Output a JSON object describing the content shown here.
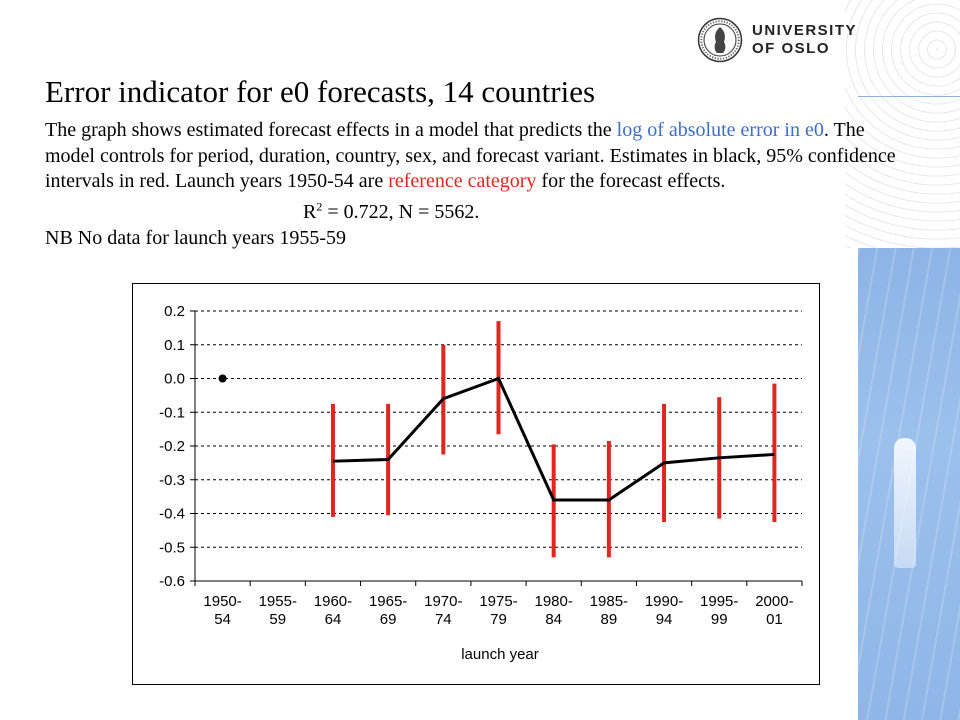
{
  "header": {
    "logo_line1": "UNIVERSITY",
    "logo_line2": "OF OSLO"
  },
  "title": "Error indicator for e0 forecasts, 14 countries",
  "description": {
    "p1a": "The graph shows estimated forecast effects in a model that predicts the ",
    "p1b": "log of absolute error in e0",
    "p1c": ". The model controls for period, duration, country, sex, and forecast variant. Estimates in black, 95% confidence intervals in red. Launch years 1950-54 are ",
    "p1d": "reference category",
    "p1e": " for the forecast effects.",
    "stats_r": "R",
    "stats_sup": "2",
    "stats_rest": " = 0.722, N = 5562.",
    "note": "NB No data for launch years 1955-59"
  },
  "colors": {
    "estimate": "#000000",
    "ci": "#e0261e",
    "highlight_blue": "#3d6ec9",
    "panel_blue": "#8db4e6"
  },
  "chart_data": {
    "type": "line",
    "categories": [
      [
        "1950-",
        "54"
      ],
      [
        "1955-",
        "59"
      ],
      [
        "1960-",
        "64"
      ],
      [
        "1965-",
        "69"
      ],
      [
        "1970-",
        "74"
      ],
      [
        "1975-",
        "79"
      ],
      [
        "1980-",
        "84"
      ],
      [
        "1985-",
        "89"
      ],
      [
        "1990-",
        "94"
      ],
      [
        "1995-",
        "99"
      ],
      [
        "2000-",
        "01"
      ]
    ],
    "estimates": [
      0.0,
      null,
      -0.245,
      -0.24,
      -0.06,
      0.0,
      -0.36,
      -0.36,
      -0.25,
      -0.235,
      -0.225
    ],
    "ci_lower": [
      null,
      null,
      -0.41,
      -0.405,
      -0.225,
      -0.165,
      -0.53,
      -0.53,
      -0.425,
      -0.415,
      -0.425
    ],
    "ci_upper": [
      null,
      null,
      -0.075,
      -0.075,
      0.1,
      0.17,
      -0.195,
      -0.185,
      -0.075,
      -0.055,
      -0.015
    ],
    "xlabel": "launch year",
    "ylabel": "",
    "ylim": [
      -0.6,
      0.2
    ],
    "yticks": [
      0.2,
      0.1,
      0.0,
      -0.1,
      -0.2,
      -0.3,
      -0.4,
      -0.5,
      -0.6
    ],
    "ytick_labels": [
      "0.2",
      "0.1",
      "0.0",
      "-0.1",
      "-0.2",
      "-0.3",
      "-0.4",
      "-0.5",
      "-0.6"
    ],
    "grid": true
  }
}
